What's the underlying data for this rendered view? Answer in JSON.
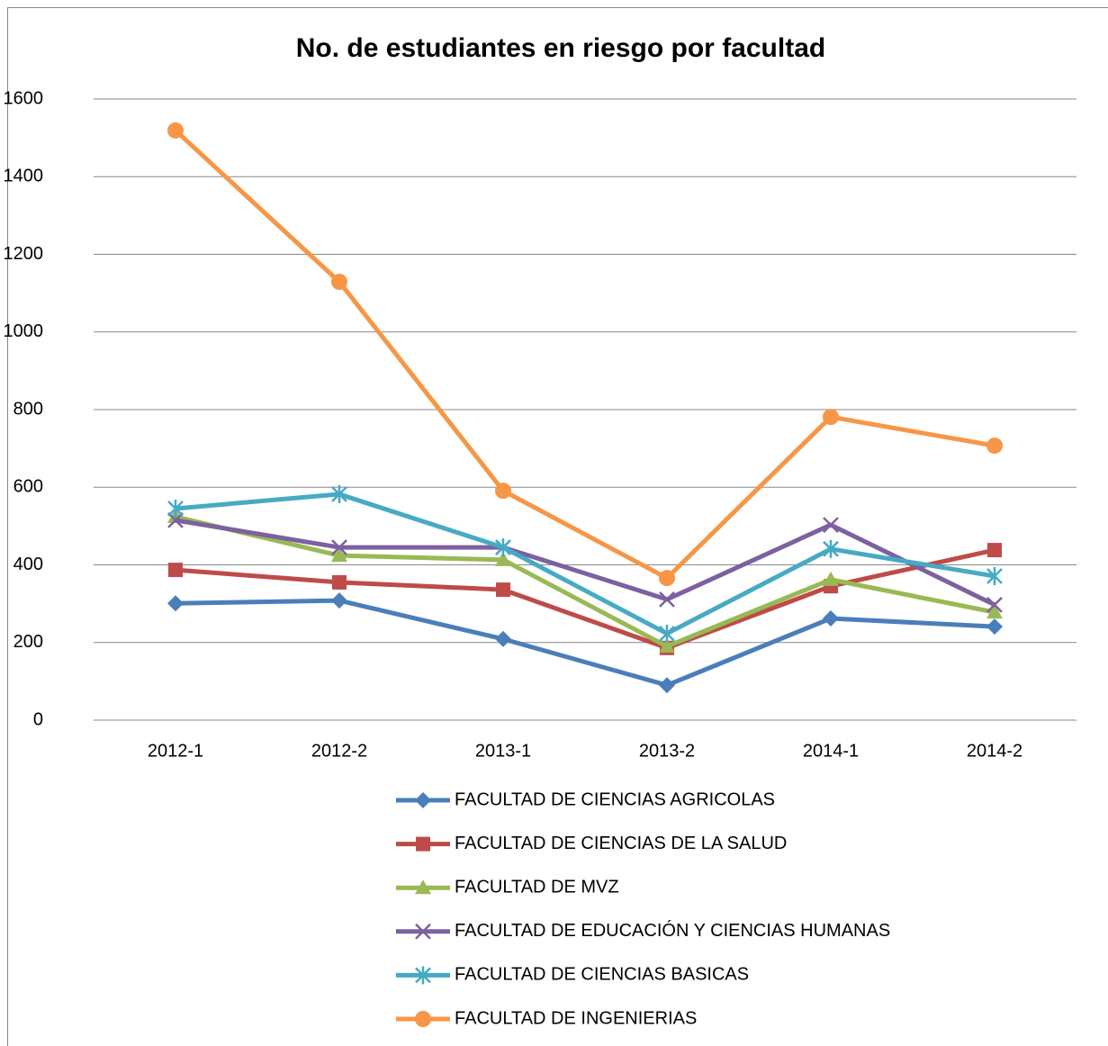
{
  "chart_data": {
    "type": "line",
    "title": "No. de estudiantes en riesgo por facultad",
    "categories": [
      "2012-1",
      "2012-2",
      "2013-1",
      "2013-2",
      "2014-1",
      "2014-2"
    ],
    "series": [
      {
        "name": "FACULTAD DE CIENCIAS AGRICOLAS",
        "color": "#4a7ebb",
        "marker": "diamond",
        "values": [
          301,
          308,
          209,
          90,
          262,
          241
        ]
      },
      {
        "name": "FACULTAD DE CIENCIAS DE LA SALUD",
        "color": "#be4b48",
        "marker": "square",
        "values": [
          387,
          355,
          336,
          186,
          345,
          438
        ]
      },
      {
        "name": "FACULTAD DE MVZ",
        "color": "#98b954",
        "marker": "triangle",
        "values": [
          524,
          424,
          413,
          190,
          362,
          278
        ]
      },
      {
        "name": "FACULTAD DE EDUCACIÓN Y CIENCIAS HUMANAS",
        "color": "#7d60a0",
        "marker": "x",
        "values": [
          515,
          445,
          445,
          311,
          503,
          297
        ]
      },
      {
        "name": "FACULTAD DE CIENCIAS BASICAS",
        "color": "#46aac5",
        "marker": "star",
        "values": [
          545,
          582,
          445,
          223,
          441,
          371
        ]
      },
      {
        "name": "FACULTAD DE INGENIERIAS",
        "color": "#f79646",
        "marker": "circle",
        "values": [
          1519,
          1129,
          591,
          366,
          781,
          707
        ]
      }
    ],
    "ylim": [
      0,
      1600
    ],
    "yticks": [
      0,
      200,
      400,
      600,
      800,
      1000,
      1200,
      1400,
      1600
    ],
    "grid": true,
    "legend": "bottom"
  }
}
